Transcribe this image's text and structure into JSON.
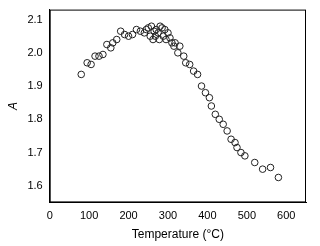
{
  "chart_data": {
    "type": "scatter",
    "x_label": "Temperature (°C)",
    "y_label": "A",
    "marker": "open_circle",
    "color": "#222222",
    "grid": false,
    "xlim": [
      0,
      650
    ],
    "xticks": [
      0,
      100,
      200,
      300,
      400,
      500,
      600
    ],
    "ylim": [
      1.55,
      2.13
    ],
    "yticks": [
      1.6,
      1.7,
      1.8,
      1.9,
      {
        "value": 2,
        "label": "2.0"
      },
      2.1
    ],
    "x": [
      80,
      95,
      105,
      115,
      125,
      135,
      145,
      155,
      160,
      170,
      180,
      190,
      200,
      210,
      220,
      230,
      240,
      245,
      250,
      255,
      258,
      262,
      265,
      268,
      270,
      275,
      278,
      280,
      285,
      288,
      292,
      295,
      300,
      305,
      310,
      315,
      318,
      325,
      330,
      340,
      345,
      355,
      365,
      375,
      385,
      395,
      405,
      410,
      420,
      430,
      440,
      450,
      460,
      470,
      475,
      485,
      495,
      520,
      540,
      560,
      580
    ],
    "values": [
      1.935,
      1.97,
      1.965,
      1.99,
      1.99,
      1.995,
      2.025,
      2.015,
      2.03,
      2.04,
      2.065,
      2.055,
      2.05,
      2.055,
      2.07,
      2.065,
      2.06,
      2.07,
      2.075,
      2.05,
      2.08,
      2.04,
      2.065,
      2.05,
      2.07,
      2.06,
      2.04,
      2.08,
      2.075,
      2.05,
      2.07,
      2.04,
      2.06,
      2.045,
      2.03,
      2.02,
      2.03,
      2.0,
      2.02,
      1.99,
      1.97,
      1.965,
      1.945,
      1.935,
      1.9,
      1.88,
      1.865,
      1.84,
      1.815,
      1.8,
      1.785,
      1.765,
      1.74,
      1.73,
      1.715,
      1.7,
      1.69,
      1.67,
      1.65,
      1.655,
      1.625
    ]
  }
}
